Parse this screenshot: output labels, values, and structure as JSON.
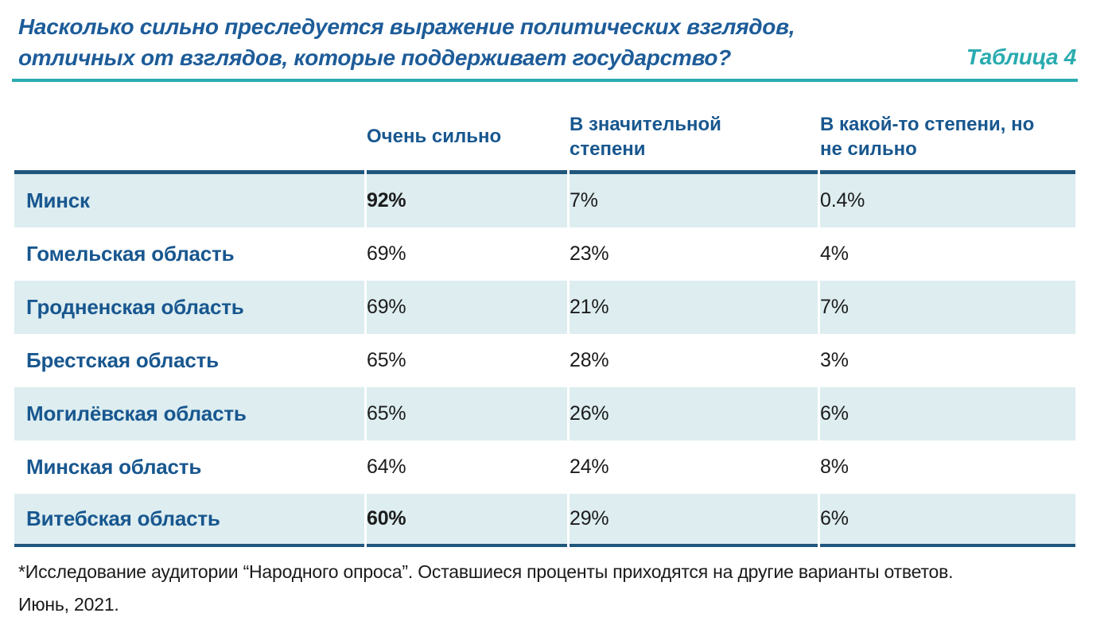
{
  "header": {
    "title_line1": "Насколько сильно преследуется выражение политических взглядов,",
    "title_line2": "отличных от взглядов, которые поддерживает государство?",
    "table_label": "Таблица 4"
  },
  "table": {
    "columns": [
      "Очень сильно",
      "В значительной степени",
      "В какой-то степени, но не сильно"
    ],
    "rows": [
      {
        "region": "Минск",
        "values": [
          "92%",
          "7%",
          "0.4%"
        ]
      },
      {
        "region": "Гомельская область",
        "values": [
          "69%",
          "23%",
          "4%"
        ]
      },
      {
        "region": "Гродненская область",
        "values": [
          "69%",
          "21%",
          "7%"
        ]
      },
      {
        "region": "Брестская область",
        "values": [
          "65%",
          "28%",
          "3%"
        ]
      },
      {
        "region": "Могилёвская область",
        "values": [
          "65%",
          "26%",
          "6%"
        ]
      },
      {
        "region": "Минская область",
        "values": [
          "64%",
          "24%",
          "8%"
        ]
      },
      {
        "region": "Витебская область",
        "values": [
          "60%",
          "29%",
          "6%"
        ]
      }
    ]
  },
  "footnote": {
    "line1": "*Исследование аудитории “Народного опроса”. Оставшиеся проценты приходятся на другие варианты ответов.",
    "line2": "Июнь, 2021."
  },
  "colors": {
    "title_blue": "#1d5c99",
    "header_blue": "#18578f",
    "teal_accent": "#2aacb0",
    "navy_rule": "#20567c",
    "row_stripe": "#ddedf0",
    "value_text": "#1c1c1c"
  },
  "chart_data": {
    "type": "table",
    "title": "Насколько сильно преследуется выражение политических взглядов, отличных от взглядов, которые поддерживает государство?",
    "table_label": "Таблица 4",
    "categories": [
      "Минск",
      "Гомельская область",
      "Гродненская область",
      "Брестская область",
      "Могилёвская область",
      "Минская область",
      "Витебская область"
    ],
    "series": [
      {
        "name": "Очень сильно",
        "values": [
          92,
          69,
          69,
          65,
          65,
          64,
          60
        ]
      },
      {
        "name": "В значительной степени",
        "values": [
          7,
          23,
          21,
          28,
          26,
          24,
          29
        ]
      },
      {
        "name": "В какой-то степени, но не сильно",
        "values": [
          0.4,
          4,
          7,
          3,
          6,
          8,
          6
        ]
      }
    ],
    "unit": "%",
    "footnote": "*Исследование аудитории “Народного опроса”. Оставшиеся проценты приходятся на другие варианты ответов. Июнь, 2021."
  }
}
